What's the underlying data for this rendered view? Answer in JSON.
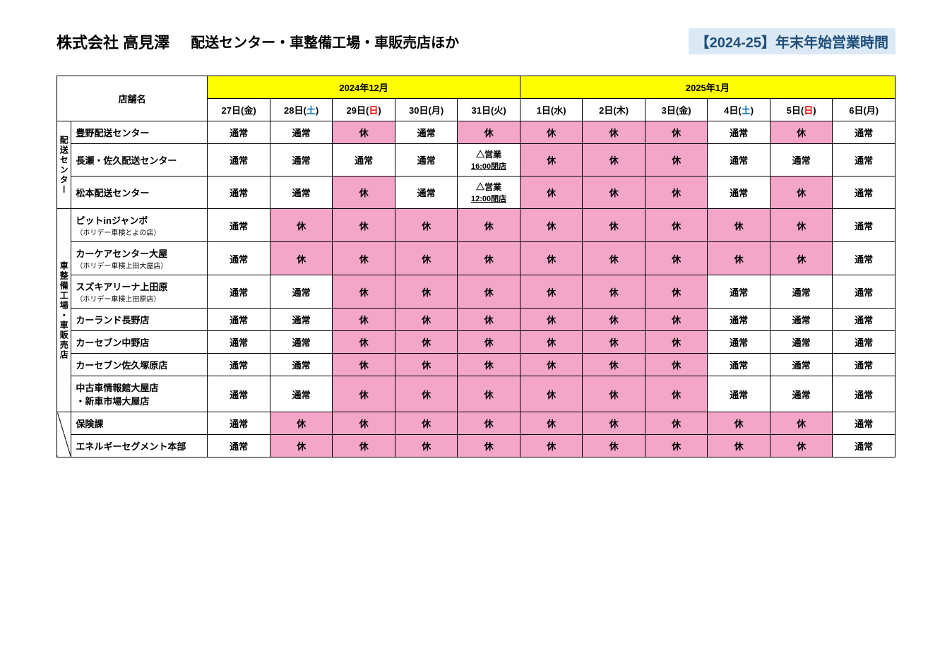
{
  "header": {
    "company": "株式会社 高見澤",
    "subtitle": "配送センター・車整備工場・車販売店ほか",
    "year_badge": "【2024-25】年末年始営業時間"
  },
  "colors": {
    "month_header_bg": "#ffff00",
    "holiday_bg": "#f4a6c9",
    "saturday_text": "#0070c0",
    "sunday_text": "#ff0000",
    "badge_bg": "#dbe9f6",
    "badge_text": "#1f4e79"
  },
  "months": {
    "dec": "2024年12月",
    "jan": "2025年1月"
  },
  "store_name_header": "店舗名",
  "days": [
    {
      "label": "27日(金)",
      "type": "normal"
    },
    {
      "label": "28日(",
      "wd": "土",
      "type": "sat",
      "suffix": ")"
    },
    {
      "label": "29日(",
      "wd": "日",
      "type": "sun",
      "suffix": ")"
    },
    {
      "label": "30日(月)",
      "type": "normal"
    },
    {
      "label": "31日(火)",
      "type": "normal"
    },
    {
      "label": "1日(水)",
      "type": "normal"
    },
    {
      "label": "2日(木)",
      "type": "normal"
    },
    {
      "label": "3日(金)",
      "type": "normal"
    },
    {
      "label": "4日(",
      "wd": "土",
      "type": "sat",
      "suffix": ")"
    },
    {
      "label": "5日(",
      "wd": "日",
      "type": "sun",
      "suffix": ")"
    },
    {
      "label": "6日(月)",
      "type": "normal"
    }
  ],
  "status_labels": {
    "normal": "通常",
    "closed": "休",
    "partial_1600": {
      "l1": "△営業",
      "l2": "16:00閉店"
    },
    "partial_1200": {
      "l1": "△営業",
      "l2": "12:00閉店"
    }
  },
  "categories": [
    {
      "label": "配送センター",
      "rows": 3
    },
    {
      "label": "車整備工場・車販売店",
      "rows": 7
    },
    {
      "label": "",
      "rows": 2,
      "diag": true
    }
  ],
  "rows": [
    {
      "name": "豊野配送センター",
      "sub": "",
      "cells": [
        "n",
        "n",
        "h",
        "n",
        "h",
        "h",
        "h",
        "h",
        "n",
        "h",
        "n"
      ]
    },
    {
      "name": "長瀬・佐久配送センター",
      "sub": "",
      "cells": [
        "n",
        "n",
        "n",
        "n",
        "p16",
        "h",
        "h",
        "h",
        "n",
        "n",
        "n"
      ]
    },
    {
      "name": "松本配送センター",
      "sub": "",
      "cells": [
        "n",
        "n",
        "h",
        "n",
        "p12",
        "h",
        "h",
        "h",
        "n",
        "h",
        "n"
      ]
    },
    {
      "name": "ピットinジャンボ",
      "sub": "（ホリデー車検とよの店）",
      "cells": [
        "n",
        "h",
        "h",
        "h",
        "h",
        "h",
        "h",
        "h",
        "h",
        "h",
        "n"
      ]
    },
    {
      "name": "カーケアセンター大屋",
      "sub": "（ホリデー車検上田大屋店）",
      "cells": [
        "n",
        "h",
        "h",
        "h",
        "h",
        "h",
        "h",
        "h",
        "h",
        "h",
        "n"
      ]
    },
    {
      "name": "スズキアリーナ上田原",
      "sub": "（ホリデー車検上田原店）",
      "cells": [
        "n",
        "n",
        "h",
        "h",
        "h",
        "h",
        "h",
        "h",
        "n",
        "n",
        "n"
      ]
    },
    {
      "name": "カーランド長野店",
      "sub": "",
      "cells": [
        "n",
        "n",
        "h",
        "h",
        "h",
        "h",
        "h",
        "h",
        "n",
        "n",
        "n"
      ]
    },
    {
      "name": "カーセブン中野店",
      "sub": "",
      "cells": [
        "n",
        "n",
        "h",
        "h",
        "h",
        "h",
        "h",
        "h",
        "n",
        "n",
        "n"
      ]
    },
    {
      "name": "カーセブン佐久塚原店",
      "sub": "",
      "cells": [
        "n",
        "n",
        "h",
        "h",
        "h",
        "h",
        "h",
        "h",
        "n",
        "n",
        "n"
      ]
    },
    {
      "name": "中古車情報館大屋店\n・新車市場大屋店",
      "sub": "",
      "cells": [
        "n",
        "n",
        "h",
        "h",
        "h",
        "h",
        "h",
        "h",
        "n",
        "n",
        "n"
      ]
    },
    {
      "name": "保険課",
      "sub": "",
      "cells": [
        "n",
        "h",
        "h",
        "h",
        "h",
        "h",
        "h",
        "h",
        "h",
        "h",
        "n"
      ]
    },
    {
      "name": "エネルギーセグメント本部",
      "sub": "",
      "cells": [
        "n",
        "h",
        "h",
        "h",
        "h",
        "h",
        "h",
        "h",
        "h",
        "h",
        "n"
      ]
    }
  ]
}
